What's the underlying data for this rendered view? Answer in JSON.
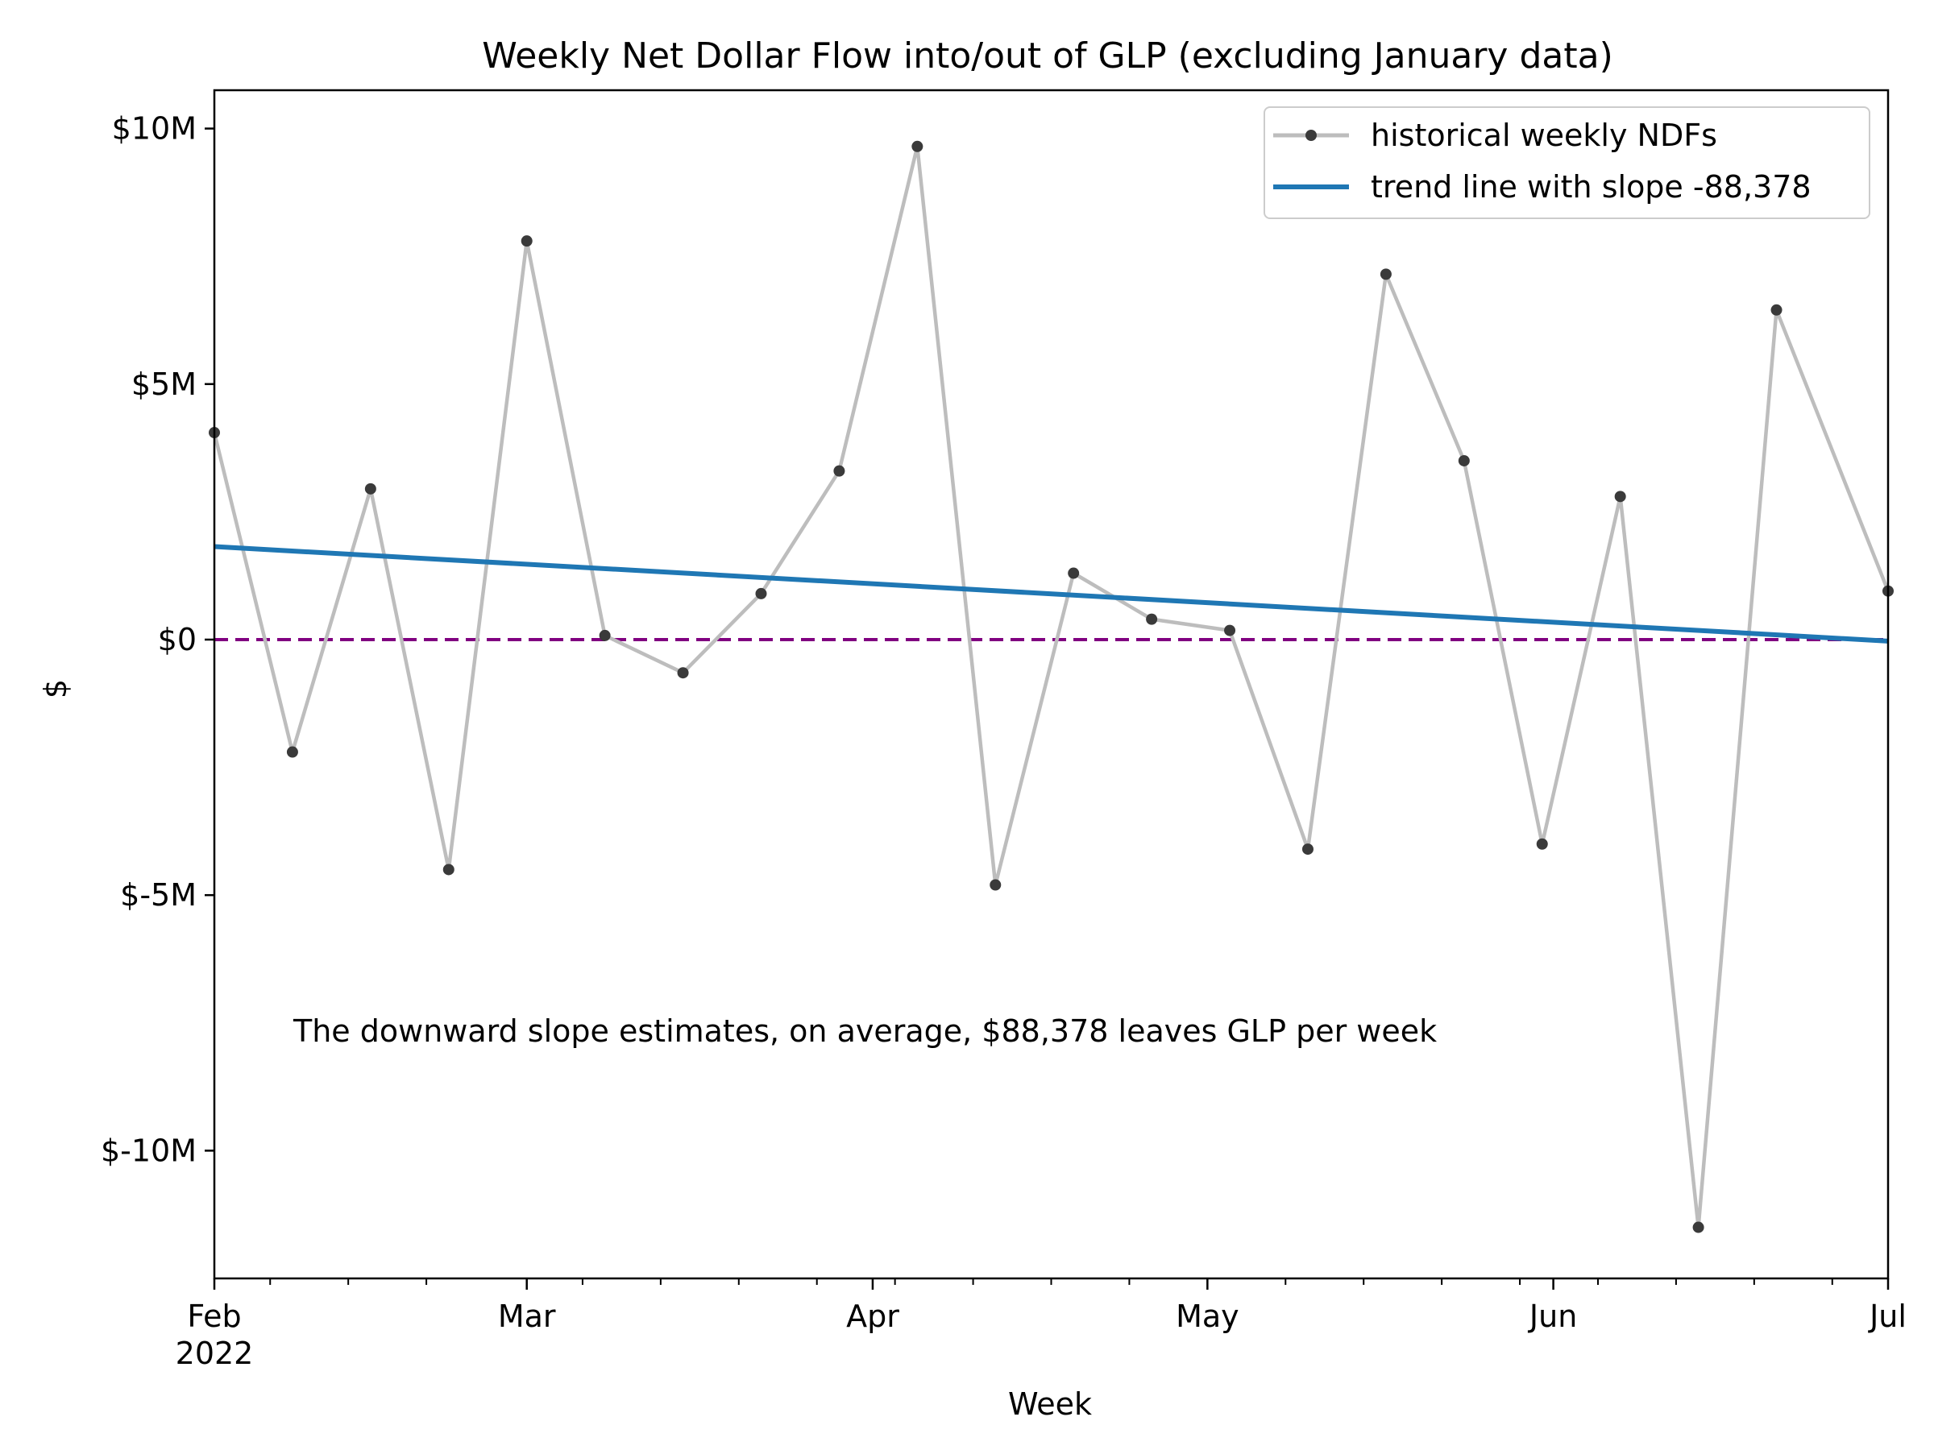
{
  "chart_data": {
    "type": "line",
    "title": "Weekly Net Dollar Flow into/out of GLP (excluding January data)",
    "xlabel": "Week",
    "ylabel": "$",
    "x_range": [
      "2022-02-01",
      "2022-07-01"
    ],
    "ylim": [
      -12500000,
      10750000
    ],
    "x_ticks": [
      {
        "date": "2022-02-01",
        "label": "Feb",
        "sublabel": "2022"
      },
      {
        "date": "2022-03-01",
        "label": "Mar",
        "sublabel": ""
      },
      {
        "date": "2022-04-01",
        "label": "Apr",
        "sublabel": ""
      },
      {
        "date": "2022-05-01",
        "label": "May",
        "sublabel": ""
      },
      {
        "date": "2022-06-01",
        "label": "Jun",
        "sublabel": ""
      },
      {
        "date": "2022-07-01",
        "label": "Jul",
        "sublabel": ""
      }
    ],
    "x_minor_ticks": [
      "2022-02-06",
      "2022-02-13",
      "2022-02-20",
      "2022-03-06",
      "2022-03-13",
      "2022-03-20",
      "2022-03-27",
      "2022-04-03",
      "2022-04-10",
      "2022-04-17",
      "2022-04-24",
      "2022-05-08",
      "2022-05-15",
      "2022-05-22",
      "2022-05-29",
      "2022-06-05",
      "2022-06-12",
      "2022-06-19",
      "2022-06-26"
    ],
    "y_ticks": [
      {
        "value": 10000000,
        "label": "$10M"
      },
      {
        "value": 5000000,
        "label": "$5M"
      },
      {
        "value": 0,
        "label": "$0"
      },
      {
        "value": -5000000,
        "label": "$-5M"
      },
      {
        "value": -10000000,
        "label": "$-10M"
      }
    ],
    "series": [
      {
        "name": "historical weekly NDFs",
        "color": "#bdbdbd",
        "marker_color": "#3a3a3a",
        "x": [
          "2022-02-01",
          "2022-02-08",
          "2022-02-15",
          "2022-02-22",
          "2022-03-01",
          "2022-03-08",
          "2022-03-15",
          "2022-03-22",
          "2022-03-29",
          "2022-04-05",
          "2022-04-12",
          "2022-04-19",
          "2022-04-26",
          "2022-05-03",
          "2022-05-10",
          "2022-05-17",
          "2022-05-24",
          "2022-05-31",
          "2022-06-07",
          "2022-06-14",
          "2022-06-21",
          "2022-07-01"
        ],
        "values": [
          4050000,
          -2200000,
          2950000,
          -4500000,
          7800000,
          80000,
          -650000,
          900000,
          3300000,
          9650000,
          -4800000,
          1300000,
          400000,
          180000,
          -4100000,
          7150000,
          3500000,
          -4000000,
          2800000,
          -11500000,
          6450000,
          950000
        ]
      },
      {
        "name": "trend line with slope -88,378",
        "color": "#1f77b4",
        "x": [
          "2022-02-01",
          "2022-07-01"
        ],
        "values": [
          1820000,
          -30000
        ]
      }
    ],
    "reference_line": {
      "value": 0,
      "color": "#800080",
      "style": "dashed"
    },
    "annotation": "The downward slope estimates, on average, $88,378 leaves GLP per week",
    "legend_position": "top-right"
  }
}
